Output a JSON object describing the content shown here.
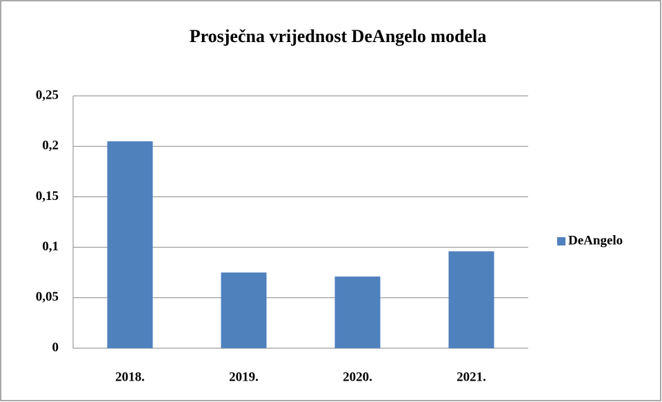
{
  "chart_data": {
    "type": "bar",
    "title": "Prosječna vrijednost DeAngelo modela",
    "categories": [
      "2018.",
      "2019.",
      "2020.",
      "2021."
    ],
    "series": [
      {
        "name": "DeAngelo",
        "color": "#4f81bd",
        "values": [
          0.205,
          0.075,
          0.071,
          0.096
        ]
      }
    ],
    "ylim": [
      0,
      0.25
    ],
    "yticks": [
      0,
      {
        "value": 0.05,
        "label": "0,05"
      },
      {
        "value": 0.1,
        "label": "0,1"
      },
      {
        "value": 0.15,
        "label": "0,15"
      },
      {
        "value": 0.2,
        "label": "0,2"
      },
      {
        "value": 0.25,
        "label": "0,25"
      }
    ],
    "grid": true,
    "legend": "right"
  }
}
